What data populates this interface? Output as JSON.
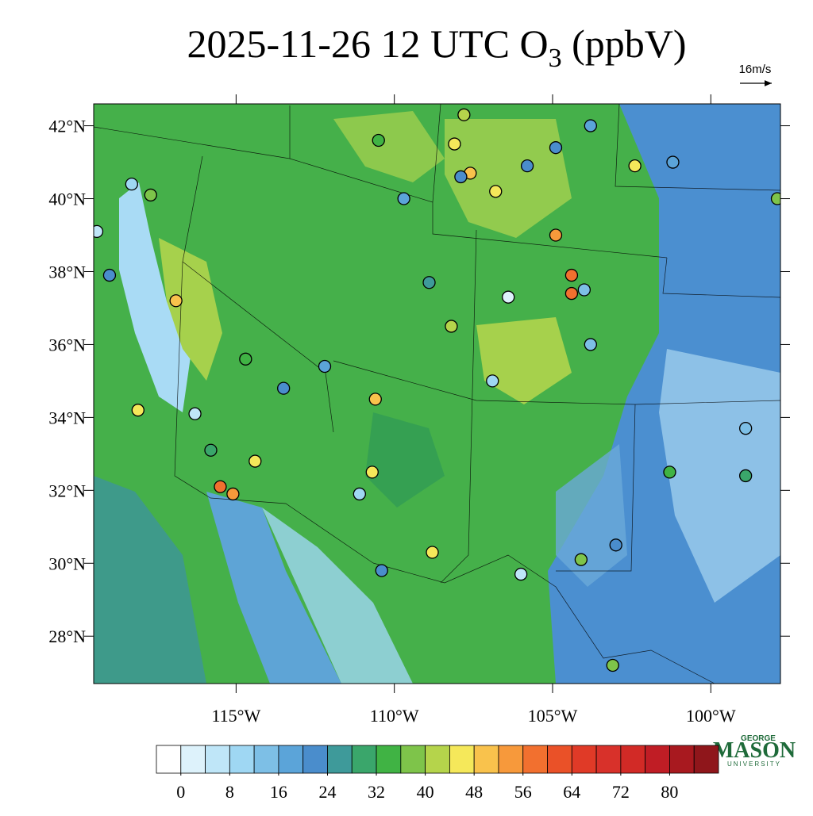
{
  "title": {
    "main": "2025-11-26 12 UTC O",
    "subscript": "3",
    "unit": " (ppbV)"
  },
  "wind_reference": "16m/s",
  "map": {
    "xlim": [
      -119.5,
      -97.8
    ],
    "ylim": [
      26.7,
      42.6
    ],
    "xticks": [
      {
        "value": -115,
        "label": "115°W"
      },
      {
        "value": -110,
        "label": "110°W"
      },
      {
        "value": -105,
        "label": "105°W"
      },
      {
        "value": -100,
        "label": "100°W"
      }
    ],
    "yticks": [
      {
        "value": 28,
        "label": "28°N"
      },
      {
        "value": 30,
        "label": "30°N"
      },
      {
        "value": 32,
        "label": "32°N"
      },
      {
        "value": 34,
        "label": "34°N"
      },
      {
        "value": 36,
        "label": "36°N"
      },
      {
        "value": 38,
        "label": "38°N"
      },
      {
        "value": 40,
        "label": "40°N"
      },
      {
        "value": 42,
        "label": "42°N"
      }
    ]
  },
  "stations": [
    {
      "lon": -107.8,
      "lat": 42.3,
      "value": 42
    },
    {
      "lon": -108.1,
      "lat": 41.5,
      "value": 46
    },
    {
      "lon": -107.6,
      "lat": 40.7,
      "value": 50
    },
    {
      "lon": -107.9,
      "lat": 40.6,
      "value": 22
    },
    {
      "lon": -106.8,
      "lat": 40.2,
      "value": 46
    },
    {
      "lon": -104.9,
      "lat": 39.0,
      "value": 54
    },
    {
      "lon": -104.4,
      "lat": 37.9,
      "value": 58
    },
    {
      "lon": -104.4,
      "lat": 37.4,
      "value": 57
    },
    {
      "lon": -104.0,
      "lat": 37.5,
      "value": 14
    },
    {
      "lon": -103.8,
      "lat": 36.0,
      "value": 14
    },
    {
      "lon": -110.6,
      "lat": 34.5,
      "value": 50
    },
    {
      "lon": -110.7,
      "lat": 32.5,
      "value": 46
    },
    {
      "lon": -111.1,
      "lat": 31.9,
      "value": 10
    },
    {
      "lon": -110.4,
      "lat": 29.8,
      "value": 22
    },
    {
      "lon": -108.8,
      "lat": 30.3,
      "value": 45
    },
    {
      "lon": -115.5,
      "lat": 32.1,
      "value": 58
    },
    {
      "lon": -115.1,
      "lat": 31.9,
      "value": 54
    },
    {
      "lon": -116.9,
      "lat": 37.2,
      "value": 50
    },
    {
      "lon": -117.7,
      "lat": 40.1,
      "value": 38
    },
    {
      "lon": -118.3,
      "lat": 40.4,
      "value": 10
    },
    {
      "lon": -119.4,
      "lat": 39.1,
      "value": 6
    },
    {
      "lon": -119.0,
      "lat": 37.9,
      "value": 22
    },
    {
      "lon": -110.5,
      "lat": 41.6,
      "value": 34
    },
    {
      "lon": -109.7,
      "lat": 40.0,
      "value": 18
    },
    {
      "lon": -108.9,
      "lat": 37.7,
      "value": 26
    },
    {
      "lon": -108.2,
      "lat": 36.5,
      "value": 42
    },
    {
      "lon": -106.9,
      "lat": 35.0,
      "value": 10
    },
    {
      "lon": -106.4,
      "lat": 37.3,
      "value": 2
    },
    {
      "lon": -104.9,
      "lat": 41.4,
      "value": 22
    },
    {
      "lon": -103.8,
      "lat": 42.0,
      "value": 18
    },
    {
      "lon": -102.4,
      "lat": 40.9,
      "value": 46
    },
    {
      "lon": -101.2,
      "lat": 41.0,
      "value": 18
    },
    {
      "lon": -97.9,
      "lat": 40.0,
      "value": 38
    },
    {
      "lon": -98.9,
      "lat": 33.7,
      "value": 14
    },
    {
      "lon": -101.3,
      "lat": 32.5,
      "value": 34
    },
    {
      "lon": -98.9,
      "lat": 32.4,
      "value": 30
    },
    {
      "lon": -103.1,
      "lat": 27.2,
      "value": 38
    },
    {
      "lon": -106.0,
      "lat": 29.7,
      "value": 6
    },
    {
      "lon": -104.1,
      "lat": 30.1,
      "value": 38
    },
    {
      "lon": -103.0,
      "lat": 30.5,
      "value": 22
    },
    {
      "lon": -112.2,
      "lat": 35.4,
      "value": 18
    },
    {
      "lon": -114.7,
      "lat": 35.6,
      "value": 34
    },
    {
      "lon": -116.3,
      "lat": 34.1,
      "value": 6
    },
    {
      "lon": -118.1,
      "lat": 34.2,
      "value": 46
    },
    {
      "lon": -115.8,
      "lat": 33.1,
      "value": 30
    },
    {
      "lon": -114.4,
      "lat": 32.8,
      "value": 46
    },
    {
      "lon": -105.8,
      "lat": 40.9,
      "value": 22
    },
    {
      "lon": -113.5,
      "lat": 34.8,
      "value": 22
    }
  ],
  "colorbar": {
    "levels": [
      0,
      4,
      8,
      12,
      16,
      20,
      24,
      28,
      32,
      36,
      40,
      44,
      48,
      52,
      56,
      60,
      64,
      68,
      72,
      76,
      80,
      84
    ],
    "colors": [
      "#ffffff",
      "#ddf2fb",
      "#bfe6f8",
      "#9fd7f3",
      "#7dbfe6",
      "#5ba4d9",
      "#4a8dcc",
      "#3e9a9a",
      "#3aa66b",
      "#40b344",
      "#7ec44a",
      "#b5d44b",
      "#f5e85a",
      "#f9c24c",
      "#f7993b",
      "#f2702f",
      "#ea5128",
      "#e03a27",
      "#d8312a",
      "#d22a26",
      "#c01d25",
      "#a8191f",
      "#8f161b"
    ],
    "ticks": [
      0,
      8,
      16,
      24,
      32,
      40,
      48,
      56,
      64,
      72,
      80
    ]
  },
  "logo": {
    "top": "GEORGE",
    "name": "MASON",
    "bottom": "UNIVERSITY"
  }
}
